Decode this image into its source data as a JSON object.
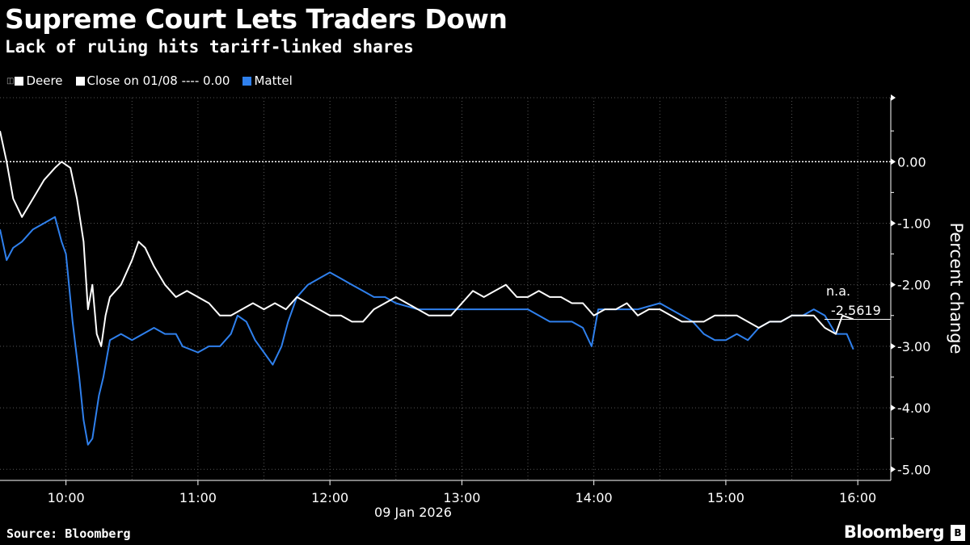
{
  "header": {
    "title": "Supreme Court Lets Traders Down",
    "subtitle": "Lack of ruling hits tariff-linked shares"
  },
  "footer": {
    "source": "Source: Bloomberg",
    "logo": "Bloomberg",
    "logo_badge": "B"
  },
  "chart_data": {
    "type": "line",
    "title": "Supreme Court Lets Traders Down",
    "subtitle": "Lack of ruling hits tariff-linked shares",
    "xlabel": "09 Jan 2026",
    "ylabel": "Percent change",
    "xlim": [
      "09:30",
      "16:15"
    ],
    "ylim": [
      -5.18,
      1.04
    ],
    "x_ticks": [
      "10:00",
      "11:00",
      "12:00",
      "13:00",
      "14:00",
      "15:00",
      "16:00"
    ],
    "y_ticks": [
      0,
      -1,
      -2,
      -3,
      -4,
      -5
    ],
    "y_tick_labels": [
      "0.00",
      "-1.00",
      "-2.00",
      "-3.00",
      "-4.00",
      "-5.00"
    ],
    "legend": [
      {
        "label": "Deere",
        "color": "#ffffff"
      },
      {
        "label": "Close on 01/08 ---- 0.00",
        "color": "#ffffff"
      },
      {
        "label": "Mattel",
        "color": "#2f80ed"
      }
    ],
    "reference_line": {
      "label": "Close on 01/08",
      "value": 0.0
    },
    "annotation": {
      "na": "n.a.",
      "last_value": "-2.5619",
      "value": -2.5619
    },
    "series": [
      {
        "name": "Deere",
        "color": "#ffffff",
        "points": [
          [
            "09:30",
            0.5
          ],
          [
            "09:33",
            0.0
          ],
          [
            "09:36",
            -0.6
          ],
          [
            "09:40",
            -0.9
          ],
          [
            "09:45",
            -0.6
          ],
          [
            "09:50",
            -0.3
          ],
          [
            "09:55",
            -0.1
          ],
          [
            "09:58",
            0.0
          ],
          [
            "10:02",
            -0.1
          ],
          [
            "10:05",
            -0.6
          ],
          [
            "10:08",
            -1.3
          ],
          [
            "10:10",
            -2.4
          ],
          [
            "10:12",
            -2.0
          ],
          [
            "10:14",
            -2.8
          ],
          [
            "10:16",
            -3.0
          ],
          [
            "10:18",
            -2.5
          ],
          [
            "10:20",
            -2.2
          ],
          [
            "10:25",
            -2.0
          ],
          [
            "10:30",
            -1.6
          ],
          [
            "10:33",
            -1.3
          ],
          [
            "10:36",
            -1.4
          ],
          [
            "10:40",
            -1.7
          ],
          [
            "10:45",
            -2.0
          ],
          [
            "10:50",
            -2.2
          ],
          [
            "10:55",
            -2.1
          ],
          [
            "11:00",
            -2.2
          ],
          [
            "11:05",
            -2.3
          ],
          [
            "11:10",
            -2.5
          ],
          [
            "11:15",
            -2.5
          ],
          [
            "11:20",
            -2.4
          ],
          [
            "11:25",
            -2.3
          ],
          [
            "11:30",
            -2.4
          ],
          [
            "11:35",
            -2.3
          ],
          [
            "11:40",
            -2.4
          ],
          [
            "11:45",
            -2.2
          ],
          [
            "11:50",
            -2.3
          ],
          [
            "11:55",
            -2.4
          ],
          [
            "12:00",
            -2.5
          ],
          [
            "12:05",
            -2.5
          ],
          [
            "12:10",
            -2.6
          ],
          [
            "12:15",
            -2.6
          ],
          [
            "12:20",
            -2.4
          ],
          [
            "12:25",
            -2.3
          ],
          [
            "12:30",
            -2.2
          ],
          [
            "12:35",
            -2.3
          ],
          [
            "12:40",
            -2.4
          ],
          [
            "12:45",
            -2.5
          ],
          [
            "12:50",
            -2.5
          ],
          [
            "12:55",
            -2.5
          ],
          [
            "13:00",
            -2.3
          ],
          [
            "13:05",
            -2.1
          ],
          [
            "13:10",
            -2.2
          ],
          [
            "13:15",
            -2.1
          ],
          [
            "13:20",
            -2.0
          ],
          [
            "13:25",
            -2.2
          ],
          [
            "13:30",
            -2.2
          ],
          [
            "13:35",
            -2.1
          ],
          [
            "13:40",
            -2.2
          ],
          [
            "13:45",
            -2.2
          ],
          [
            "13:50",
            -2.3
          ],
          [
            "13:55",
            -2.3
          ],
          [
            "14:00",
            -2.5
          ],
          [
            "14:05",
            -2.4
          ],
          [
            "14:10",
            -2.4
          ],
          [
            "14:15",
            -2.3
          ],
          [
            "14:20",
            -2.5
          ],
          [
            "14:25",
            -2.4
          ],
          [
            "14:30",
            -2.4
          ],
          [
            "14:35",
            -2.5
          ],
          [
            "14:40",
            -2.6
          ],
          [
            "14:45",
            -2.6
          ],
          [
            "14:50",
            -2.6
          ],
          [
            "14:55",
            -2.5
          ],
          [
            "15:00",
            -2.5
          ],
          [
            "15:05",
            -2.5
          ],
          [
            "15:10",
            -2.6
          ],
          [
            "15:15",
            -2.7
          ],
          [
            "15:20",
            -2.6
          ],
          [
            "15:25",
            -2.6
          ],
          [
            "15:30",
            -2.5
          ],
          [
            "15:35",
            -2.5
          ],
          [
            "15:40",
            -2.5
          ],
          [
            "15:45",
            -2.7
          ],
          [
            "15:50",
            -2.8
          ],
          [
            "15:53",
            -2.5
          ],
          [
            "15:58",
            -2.56
          ]
        ]
      },
      {
        "name": "Mattel",
        "color": "#2f80ed",
        "points": [
          [
            "09:30",
            -1.1
          ],
          [
            "09:33",
            -1.6
          ],
          [
            "09:36",
            -1.4
          ],
          [
            "09:40",
            -1.3
          ],
          [
            "09:45",
            -1.1
          ],
          [
            "09:50",
            -1.0
          ],
          [
            "09:55",
            -0.9
          ],
          [
            "09:58",
            -1.3
          ],
          [
            "10:00",
            -1.5
          ],
          [
            "10:03",
            -2.6
          ],
          [
            "10:06",
            -3.5
          ],
          [
            "10:08",
            -4.2
          ],
          [
            "10:10",
            -4.6
          ],
          [
            "10:12",
            -4.5
          ],
          [
            "10:15",
            -3.8
          ],
          [
            "10:17",
            -3.5
          ],
          [
            "10:20",
            -2.9
          ],
          [
            "10:25",
            -2.8
          ],
          [
            "10:30",
            -2.9
          ],
          [
            "10:35",
            -2.8
          ],
          [
            "10:40",
            -2.7
          ],
          [
            "10:45",
            -2.8
          ],
          [
            "10:50",
            -2.8
          ],
          [
            "10:53",
            -3.0
          ],
          [
            "11:00",
            -3.1
          ],
          [
            "11:05",
            -3.0
          ],
          [
            "11:10",
            -3.0
          ],
          [
            "11:15",
            -2.8
          ],
          [
            "11:18",
            -2.5
          ],
          [
            "11:22",
            -2.6
          ],
          [
            "11:26",
            -2.9
          ],
          [
            "11:30",
            -3.1
          ],
          [
            "11:34",
            -3.3
          ],
          [
            "11:38",
            -3.0
          ],
          [
            "11:41",
            -2.6
          ],
          [
            "11:45",
            -2.2
          ],
          [
            "11:50",
            -2.0
          ],
          [
            "11:55",
            -1.9
          ],
          [
            "12:00",
            -1.8
          ],
          [
            "12:05",
            -1.9
          ],
          [
            "12:10",
            -2.0
          ],
          [
            "12:15",
            -2.1
          ],
          [
            "12:20",
            -2.2
          ],
          [
            "12:25",
            -2.2
          ],
          [
            "12:30",
            -2.3
          ],
          [
            "12:40",
            -2.4
          ],
          [
            "12:50",
            -2.4
          ],
          [
            "13:00",
            -2.4
          ],
          [
            "13:10",
            -2.4
          ],
          [
            "13:20",
            -2.4
          ],
          [
            "13:30",
            -2.4
          ],
          [
            "13:40",
            -2.6
          ],
          [
            "13:50",
            -2.6
          ],
          [
            "13:55",
            -2.7
          ],
          [
            "13:59",
            -3.0
          ],
          [
            "14:02",
            -2.4
          ],
          [
            "14:10",
            -2.4
          ],
          [
            "14:20",
            -2.4
          ],
          [
            "14:30",
            -2.3
          ],
          [
            "14:40",
            -2.5
          ],
          [
            "14:45",
            -2.6
          ],
          [
            "14:50",
            -2.8
          ],
          [
            "14:55",
            -2.9
          ],
          [
            "15:00",
            -2.9
          ],
          [
            "15:05",
            -2.8
          ],
          [
            "15:10",
            -2.9
          ],
          [
            "15:15",
            -2.7
          ],
          [
            "15:20",
            -2.6
          ],
          [
            "15:25",
            -2.6
          ],
          [
            "15:30",
            -2.5
          ],
          [
            "15:35",
            -2.5
          ],
          [
            "15:40",
            -2.4
          ],
          [
            "15:45",
            -2.5
          ],
          [
            "15:50",
            -2.8
          ],
          [
            "15:55",
            -2.8
          ],
          [
            "15:58",
            -3.05
          ]
        ]
      }
    ]
  }
}
